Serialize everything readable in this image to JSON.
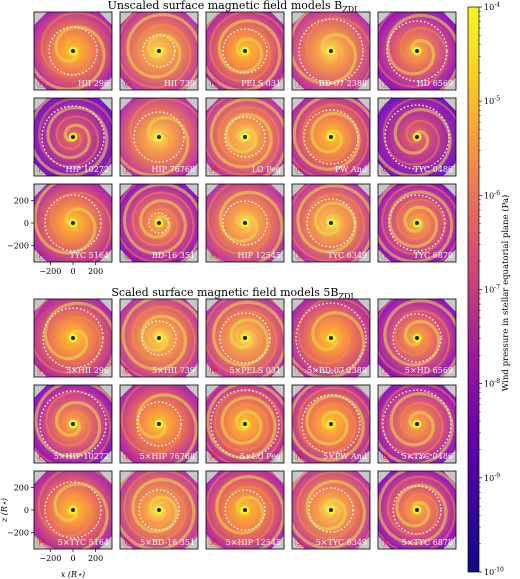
{
  "top_title": "Unscaled surface magnetic field models B",
  "top_title_sub": "ZDI",
  "bottom_title": "Scaled surface magnetic field models 5B",
  "bottom_title_sub": "ZDI",
  "colorbar_label": "Wind pressure in stellar equatorial plane (Pa)",
  "colors": {
    "spiral": "#efe04a",
    "orbit": "#ffffff",
    "corner": "#c8c8c8",
    "background": "#ffffff"
  },
  "chart_data": {
    "type": "heatmap",
    "colormap": "plasma",
    "colorbar": {
      "scale": "log",
      "range": [
        1e-10,
        0.0001
      ],
      "tick_labels": [
        "10^-4",
        "10^-5",
        "10^-6",
        "10^-7",
        "10^-8",
        "10^-9",
        "10^-10"
      ],
      "label": "Wind pressure in stellar equatorial plane (Pa)"
    },
    "axes": {
      "xlabel": "x (R⋆)",
      "ylabel": "z (R⋆)",
      "xticks": [
        "−200",
        "0",
        "200"
      ],
      "yticks": [
        "200",
        "0",
        "−200"
      ],
      "xlim": [
        -350,
        350
      ],
      "ylim": [
        -350,
        350
      ]
    },
    "panels_unscaled": [
      {
        "badge": "Ⓕ",
        "name": "HII 296"
      },
      {
        "badge": "Ⓖ",
        "name": "HII 739"
      },
      {
        "badge": "Ⓗ",
        "name": "PELS 031"
      },
      {
        "badge": "Ⓘ",
        "name": "BD-07 2388"
      },
      {
        "badge": "Ⓘ",
        "name": "HD 6569"
      },
      {
        "badge": "Ⓚ",
        "name": "HIP 10272"
      },
      {
        "badge": "Ⓛ",
        "name": "HIP 76768"
      },
      {
        "badge": "Ⓜ",
        "name": "LO Peg"
      },
      {
        "badge": "Ⓝ",
        "name": "PW And"
      },
      {
        "badge": "Ⓞ",
        "name": "TYC 0486"
      },
      {
        "badge": "Ⓟ",
        "name": "TYC 5164"
      },
      {
        "badge": "Ⓠ",
        "name": "BD-16 351"
      },
      {
        "badge": "Ⓡ",
        "name": "HIP 12545"
      },
      {
        "badge": "Ⓢ",
        "name": "TYC 6349"
      },
      {
        "badge": "Ⓣ",
        "name": "TYC 6878"
      }
    ],
    "panels_scaled": [
      {
        "badge": "Ⓕ",
        "name": "5×HII 296"
      },
      {
        "badge": "Ⓖ",
        "name": "5×HII 739"
      },
      {
        "badge": "Ⓗ",
        "name": "5×PELS 031"
      },
      {
        "badge": "Ⓘ",
        "name": "5×BD-07 2388"
      },
      {
        "badge": "Ⓘ",
        "name": "5×HD 6569"
      },
      {
        "badge": "Ⓚ",
        "name": "5×HIP 10272"
      },
      {
        "badge": "Ⓛ",
        "name": "5×HIP 76768"
      },
      {
        "badge": "Ⓜ",
        "name": "5×LO Peg"
      },
      {
        "badge": "Ⓝ",
        "name": "5×PW And"
      },
      {
        "badge": "Ⓞ",
        "name": "5×TYC 0486"
      },
      {
        "badge": "Ⓟ",
        "name": "5×TYC 5164"
      },
      {
        "badge": "Ⓠ",
        "name": "5×BD-16 351"
      },
      {
        "badge": "Ⓡ",
        "name": "5×HIP 12545"
      },
      {
        "badge": "Ⓢ",
        "name": "5×TYC 6349"
      },
      {
        "badge": "Ⓣ",
        "name": "5×TYC 6878"
      }
    ]
  }
}
